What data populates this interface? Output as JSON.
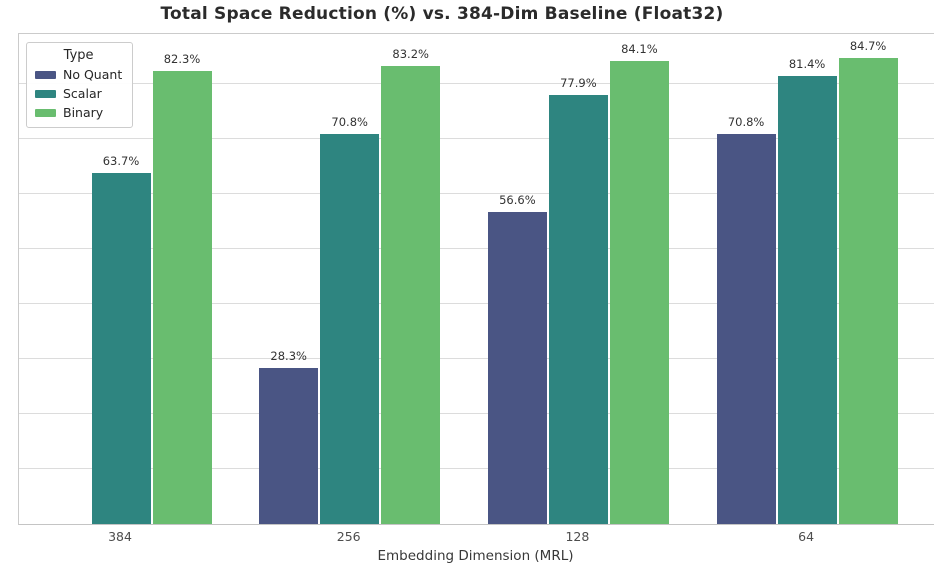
{
  "chart_data": {
    "type": "bar",
    "title": "Total Space Reduction (%) vs. 384-Dim Baseline (Float32)",
    "xlabel": "Embedding Dimension (MRL)",
    "ylabel": "",
    "categories": [
      "384",
      "256",
      "128",
      "64"
    ],
    "series": [
      {
        "name": "No Quant",
        "color": "#4a5584",
        "values": [
          0,
          28.3,
          56.6,
          70.8
        ],
        "bar_labels": [
          "",
          "28.3%",
          "56.6%",
          "70.8%"
        ]
      },
      {
        "name": "Scalar",
        "color": "#2e8580",
        "values": [
          63.7,
          70.8,
          77.9,
          81.4
        ],
        "bar_labels": [
          "63.7%",
          "70.8%",
          "77.9%",
          "81.4%"
        ]
      },
      {
        "name": "Binary",
        "color": "#69bd6f",
        "values": [
          82.3,
          83.2,
          84.1,
          84.7
        ],
        "bar_labels": [
          "82.3%",
          "83.2%",
          "84.1%",
          "84.7%"
        ]
      }
    ],
    "ylim": [
      0,
      89
    ],
    "ytick_interval": 10,
    "grid": "horizontal",
    "gridline_color": "#dcdcdc",
    "legend": {
      "title": "Type",
      "position": "upper-left"
    }
  }
}
